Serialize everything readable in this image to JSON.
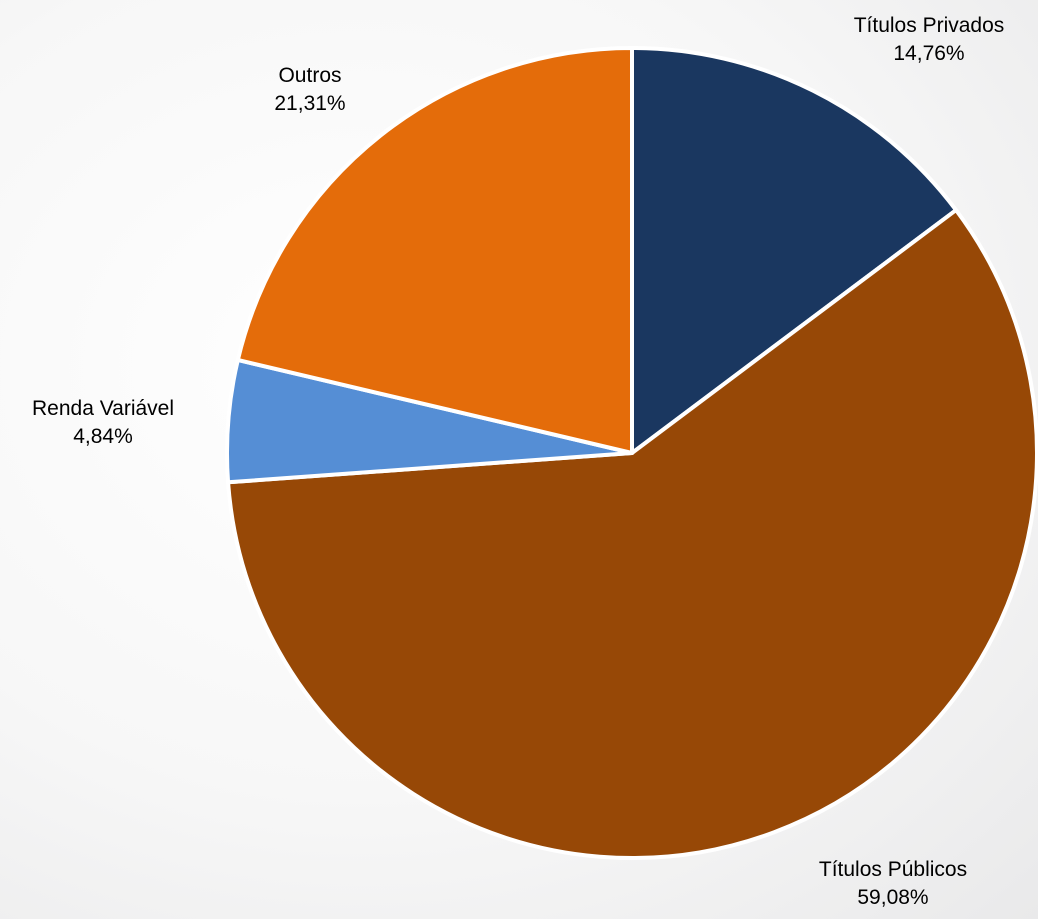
{
  "chart_data": {
    "type": "pie",
    "title": "",
    "start_angle_deg": 0,
    "direction": "clockwise",
    "slices": [
      {
        "label": "Títulos Privados",
        "value": 14.76,
        "value_label": "14,76%",
        "color": "#1a3760"
      },
      {
        "label": "Títulos Públicos",
        "value": 59.08,
        "value_label": "59,08%",
        "color": "#974806"
      },
      {
        "label": "Renda Variável",
        "value": 4.84,
        "value_label": "4,84%",
        "color": "#558ed5"
      },
      {
        "label": "Outros",
        "value": 21.31,
        "value_label": "21,31%",
        "color": "#e46c0a"
      }
    ],
    "slice_border_color": "#ffffff",
    "legend": "none"
  }
}
